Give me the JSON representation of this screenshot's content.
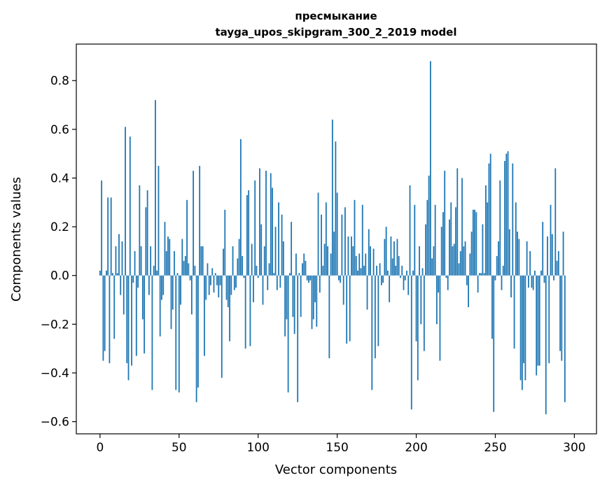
{
  "chart_data": {
    "type": "bar",
    "title": "пресмыкание",
    "subtitle": "tayga_upos_skipgram_300_2_2019 model",
    "xlabel": "Vector components",
    "ylabel": "Components values",
    "xlim": [
      -15,
      314
    ],
    "ylim": [
      -0.65,
      0.95
    ],
    "x_ticks": [
      0,
      50,
      100,
      150,
      200,
      250,
      300
    ],
    "x_tick_labels": [
      "0",
      "50",
      "100",
      "150",
      "200",
      "250",
      "300"
    ],
    "y_ticks": [
      -0.6,
      -0.4,
      -0.2,
      0.0,
      0.2,
      0.4,
      0.6,
      0.8
    ],
    "y_tick_labels": [
      "−0.6",
      "−0.4",
      "−0.2",
      "0.0",
      "0.2",
      "0.4",
      "0.6",
      "0.8"
    ],
    "grid": false,
    "bar_color": "#1f77b4",
    "values": [
      0.02,
      0.39,
      -0.35,
      -0.31,
      0.02,
      0.32,
      -0.36,
      0.32,
      0.01,
      -0.26,
      0.12,
      0.01,
      0.17,
      -0.08,
      0.14,
      -0.16,
      0.61,
      -0.36,
      -0.43,
      0.57,
      -0.37,
      -0.03,
      0.1,
      -0.33,
      -0.05,
      0.37,
      0.12,
      -0.18,
      -0.32,
      0.28,
      0.35,
      -0.08,
      0.12,
      -0.47,
      0.04,
      0.72,
      0.02,
      0.45,
      -0.25,
      -0.1,
      -0.08,
      0.22,
      0.1,
      0.16,
      0.15,
      -0.22,
      -0.14,
      0.1,
      -0.47,
      0.01,
      -0.48,
      -0.12,
      0.15,
      0.06,
      0.08,
      0.31,
      0.05,
      -0.02,
      -0.16,
      0.43,
      0.04,
      -0.52,
      -0.46,
      0.45,
      0.12,
      0.12,
      -0.33,
      -0.1,
      0.05,
      -0.08,
      -0.04,
      0.03,
      -0.07,
      0.01,
      -0.04,
      -0.09,
      -0.04,
      -0.42,
      0.11,
      0.27,
      -0.1,
      -0.13,
      -0.27,
      -0.08,
      0.12,
      -0.06,
      -0.05,
      0.07,
      0.15,
      0.56,
      0.08,
      -0.01,
      -0.3,
      0.33,
      0.35,
      -0.29,
      0.13,
      -0.11,
      0.39,
      0.04,
      -0.01,
      0.44,
      0.21,
      -0.12,
      0.12,
      0.43,
      -0.06,
      0.05,
      0.42,
      0.36,
      0.01,
      0.2,
      -0.06,
      0.3,
      -0.05,
      0.25,
      0.14,
      -0.25,
      -0.18,
      -0.48,
      0.01,
      0.22,
      -0.17,
      -0.24,
      0.09,
      -0.52,
      0.01,
      -0.17,
      0.05,
      0.09,
      0.06,
      -0.02,
      -0.03,
      -0.02,
      -0.22,
      -0.18,
      -0.11,
      -0.21,
      0.34,
      -0.07,
      0.25,
      0.04,
      0.13,
      0.3,
      0.12,
      -0.34,
      0.09,
      0.64,
      0.18,
      0.55,
      0.34,
      -0.02,
      -0.03,
      0.25,
      -0.12,
      0.28,
      -0.28,
      0.16,
      -0.27,
      0.16,
      0.12,
      0.31,
      0.08,
      0.02,
      0.09,
      0.03,
      0.29,
      0.04,
      0.09,
      -0.14,
      0.19,
      0.12,
      -0.47,
      0.11,
      -0.34,
      0.04,
      -0.29,
      0.05,
      -0.04,
      -0.03,
      0.15,
      0.2,
      0.02,
      -0.11,
      0.16,
      0.07,
      0.14,
      0.04,
      0.15,
      0.08,
      -0.01,
      0.04,
      -0.06,
      -0.02,
      0.02,
      -0.08,
      0.37,
      -0.55,
      0.02,
      0.29,
      -0.27,
      -0.43,
      0.12,
      -0.2,
      0.03,
      -0.31,
      0.21,
      0.31,
      0.41,
      0.88,
      0.07,
      0.12,
      0.29,
      -0.2,
      -0.07,
      -0.35,
      0.2,
      0.26,
      0.43,
      -0.01,
      -0.06,
      0.23,
      0.3,
      0.12,
      0.13,
      0.28,
      0.44,
      0.05,
      0.1,
      0.4,
      0.12,
      0.14,
      -0.04,
      -0.13,
      0.09,
      0.18,
      0.27,
      0.27,
      0.26,
      -0.07,
      0.01,
      0.01,
      0.21,
      0.01,
      0.37,
      0.3,
      0.46,
      0.5,
      -0.26,
      -0.56,
      -0.02,
      0.08,
      0.14,
      0.39,
      -0.06,
      0.04,
      0.47,
      0.5,
      0.51,
      0.19,
      -0.09,
      0.46,
      -0.3,
      0.3,
      0.18,
      0.15,
      -0.43,
      -0.47,
      -0.36,
      -0.43,
      0.14,
      -0.05,
      0.1,
      -0.05,
      -0.06,
      0.02,
      -0.41,
      -0.37,
      -0.37,
      0.02,
      0.22,
      -0.03,
      -0.57,
      0.16,
      -0.36,
      0.29,
      0.17,
      -0.02,
      0.44,
      0.06,
      0.1,
      -0.31,
      -0.35,
      0.18,
      -0.52
    ]
  }
}
